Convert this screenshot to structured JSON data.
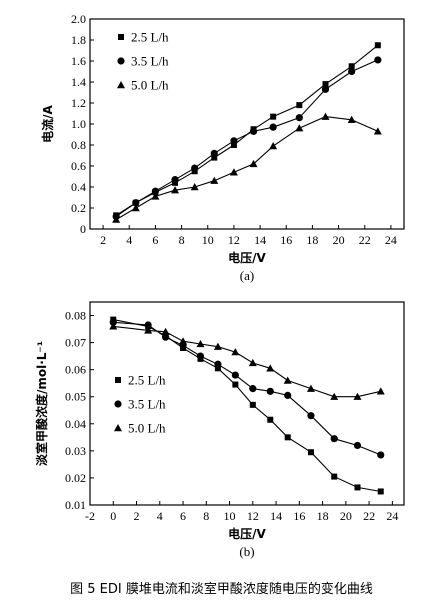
{
  "figure_caption": "图 5   EDI 膜堆电流和淡室甲酸浓度随电压的变化曲线",
  "chart_data": [
    {
      "type": "line",
      "label": "(a)",
      "xlabel": "电压/V",
      "ylabel": "电流/A",
      "xlim": [
        1,
        25
      ],
      "ylim": [
        0,
        2.0
      ],
      "xticks": [
        2,
        4,
        6,
        8,
        10,
        12,
        14,
        16,
        18,
        20,
        22,
        24
      ],
      "yticks": [
        0,
        0.2,
        0.4,
        0.6,
        0.8,
        1.0,
        1.2,
        1.4,
        1.6,
        1.8,
        2.0
      ],
      "ytick_labels": [
        "0",
        "0.2",
        "0.4",
        "0.6",
        "0.8",
        "1.0",
        "1.2",
        "1.4",
        "1.6",
        "1.8",
        "2.0"
      ],
      "legend_position": "top-left",
      "series": [
        {
          "name": "2.5 L/h",
          "marker": "square",
          "x": [
            3,
            4.5,
            6,
            7.5,
            9,
            10.5,
            12,
            13.5,
            15,
            17,
            19,
            21,
            23
          ],
          "y": [
            0.13,
            0.25,
            0.35,
            0.44,
            0.55,
            0.68,
            0.8,
            0.95,
            1.07,
            1.18,
            1.38,
            1.55,
            1.75
          ]
        },
        {
          "name": "3.5 L/h",
          "marker": "circle",
          "x": [
            3,
            4.5,
            6,
            7.5,
            9,
            10.5,
            12,
            13.5,
            15,
            17,
            19,
            21,
            23
          ],
          "y": [
            0.12,
            0.25,
            0.36,
            0.47,
            0.58,
            0.72,
            0.84,
            0.93,
            0.97,
            1.06,
            1.33,
            1.5,
            1.61
          ]
        },
        {
          "name": "5.0 L/h",
          "marker": "triangle",
          "x": [
            3,
            4.5,
            6,
            7.5,
            9,
            10.5,
            12,
            13.5,
            15,
            17,
            19,
            21,
            23
          ],
          "y": [
            0.09,
            0.2,
            0.31,
            0.37,
            0.4,
            0.46,
            0.54,
            0.62,
            0.79,
            0.96,
            1.07,
            1.04,
            0.93
          ]
        }
      ]
    },
    {
      "type": "line",
      "label": "(b)",
      "xlabel": "电压/V",
      "ylabel": "淡室甲酸浓度/mol·L⁻¹",
      "xlim": [
        -2,
        25
      ],
      "ylim": [
        0.01,
        0.085
      ],
      "xticks": [
        -2,
        0,
        2,
        4,
        6,
        8,
        10,
        12,
        14,
        16,
        18,
        20,
        22,
        24
      ],
      "yticks": [
        0.01,
        0.02,
        0.03,
        0.04,
        0.05,
        0.06,
        0.07,
        0.08
      ],
      "ytick_labels": [
        "0.01",
        "0.02",
        "0.03",
        "0.04",
        "0.05",
        "0.06",
        "0.07",
        "0.08"
      ],
      "legend_position": "bottom-left",
      "series": [
        {
          "name": "2.5 L/h",
          "marker": "square",
          "x": [
            0,
            3,
            4.5,
            6,
            7.5,
            9,
            10.5,
            12,
            13.5,
            15,
            17,
            19,
            21,
            23
          ],
          "y": [
            0.0785,
            0.076,
            0.0725,
            0.068,
            0.064,
            0.0605,
            0.0545,
            0.047,
            0.0415,
            0.035,
            0.0295,
            0.0205,
            0.0165,
            0.015
          ]
        },
        {
          "name": "3.5 L/h",
          "marker": "circle",
          "x": [
            0,
            3,
            4.5,
            6,
            7.5,
            9,
            10.5,
            12,
            13.5,
            15,
            17,
            19,
            21,
            23
          ],
          "y": [
            0.0775,
            0.0765,
            0.072,
            0.069,
            0.065,
            0.062,
            0.058,
            0.053,
            0.052,
            0.0505,
            0.043,
            0.0345,
            0.032,
            0.0285
          ]
        },
        {
          "name": "5.0 L/h",
          "marker": "triangle",
          "x": [
            0,
            3,
            4.5,
            6,
            7.5,
            9,
            10.5,
            12,
            13.5,
            15,
            17,
            19,
            21,
            23
          ],
          "y": [
            0.076,
            0.0745,
            0.074,
            0.0705,
            0.0695,
            0.0685,
            0.0665,
            0.0625,
            0.0605,
            0.056,
            0.053,
            0.05,
            0.05,
            0.052
          ]
        }
      ]
    }
  ]
}
